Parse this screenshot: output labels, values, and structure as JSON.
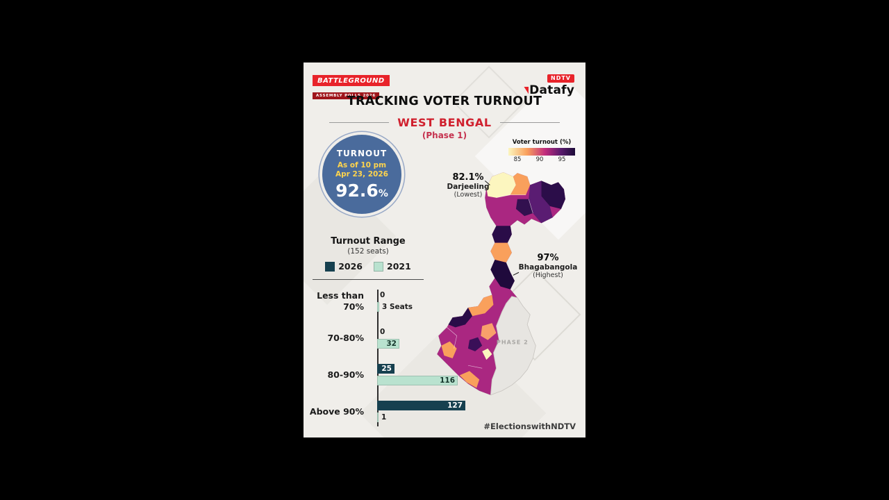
{
  "window": {
    "hashtag": "#ElectionswithNDTV"
  },
  "header": {
    "battleground_line1": "BATTLEGROUND",
    "battleground_line2": "ASSEMBLY POLLS 2026",
    "ndtv_brand": "NDTV",
    "ndtv_product": "Datafy",
    "title": "TRACKING VOTER TURNOUT",
    "state": "WEST BENGAL",
    "phase": "(Phase 1)"
  },
  "turnout_badge": {
    "label": "TURNOUT",
    "asof_line1": "As of 10 pm",
    "asof_line2": "Apr 23, 2026",
    "value": "92.6",
    "percent": "%"
  },
  "map_legend": {
    "title": "Voter turnout (%)",
    "ticks": [
      "85",
      "90",
      "95"
    ]
  },
  "map": {
    "lowest_value": "82.1%",
    "lowest_name": "Darjeeling",
    "lowest_note": "(Lowest)",
    "highest_value": "97%",
    "highest_name": "Bhagabangola",
    "highest_note": "(Highest)",
    "phase2_label": "PHASE 2"
  },
  "range_chart": {
    "title": "Turnout Range",
    "subtitle": "(152 seats)",
    "legend_2026": "2026",
    "legend_2021": "2021"
  },
  "chart_data": {
    "type": "bar",
    "orientation": "horizontal",
    "title": "Turnout Range (152 seats)",
    "categories": [
      "Less than 70%",
      "70-80%",
      "80-90%",
      "Above 90%"
    ],
    "series": [
      {
        "name": "2026",
        "color": "#16404f",
        "values": [
          0,
          0,
          25,
          127
        ],
        "labels": [
          "0",
          "0",
          "25",
          "127"
        ]
      },
      {
        "name": "2021",
        "color": "#b9e2cf",
        "values": [
          3,
          32,
          116,
          1
        ],
        "labels": [
          "3 Seats",
          "32",
          "116",
          "1"
        ]
      }
    ],
    "x_max": 152,
    "unit": "seats",
    "legend_position": "top-left",
    "grid": false
  },
  "colors": {
    "accent_red": "#e8232a",
    "state_red": "#d0202e",
    "badge_blue": "#4a6b9c",
    "badge_yellow": "#ffd44d",
    "bar_2026": "#16404f",
    "bar_2021": "#b9e2cf",
    "choropleth_scale": [
      "#fcf6bf",
      "#f9a05c",
      "#c22c7d",
      "#5b1a6e",
      "#1c0b38"
    ]
  }
}
